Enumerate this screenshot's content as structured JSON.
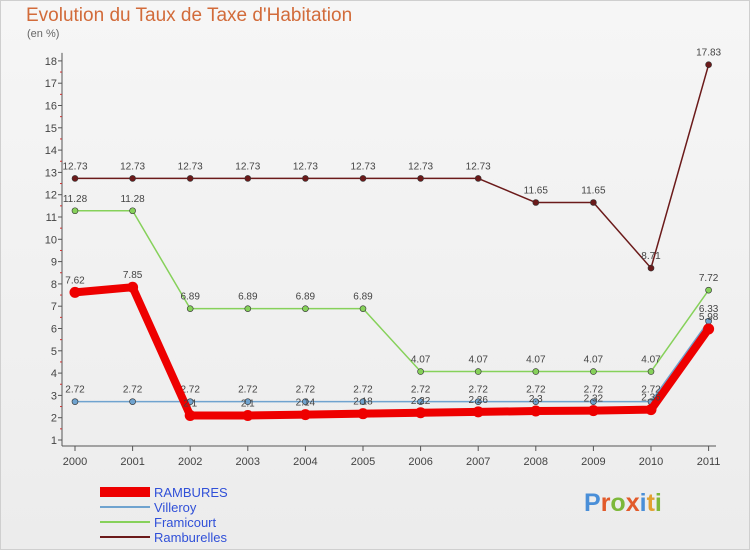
{
  "header": {
    "title": "Evolution du Taux de Taxe d'Habitation",
    "unit": "(en %)"
  },
  "logo": {
    "text": "Proxiti",
    "colors": [
      "#4a8fd8",
      "#e25a2a",
      "#7db83a",
      "#e25a2a",
      "#4a8fd8",
      "#e2a030",
      "#7db83a"
    ]
  },
  "chart_data": {
    "type": "line",
    "title": "Evolution du Taux de Taxe d'Habitation",
    "ylabel": "(en %)",
    "xlabel": "",
    "ylim": [
      1,
      18
    ],
    "yticks": [
      1,
      2,
      3,
      4,
      5,
      6,
      7,
      8,
      9,
      10,
      11,
      12,
      13,
      14,
      15,
      16,
      17,
      18
    ],
    "categories": [
      "2000",
      "2001",
      "2002",
      "2003",
      "2004",
      "2005",
      "2006",
      "2007",
      "2008",
      "2009",
      "2010",
      "2011"
    ],
    "series": [
      {
        "name": "Ramburelles",
        "color": "#6b1a1a",
        "values": [
          12.73,
          12.73,
          12.73,
          12.73,
          12.73,
          12.73,
          12.73,
          12.73,
          11.65,
          11.65,
          8.71,
          17.83
        ],
        "labels": [
          "12.73",
          "12.73",
          "12.73",
          "12.73",
          "12.73",
          "12.73",
          "12.73",
          "12.73",
          "11.65",
          "11.65",
          "8.71",
          "17.83"
        ]
      },
      {
        "name": "Framicourt",
        "color": "#86d15a",
        "values": [
          11.28,
          11.28,
          6.89,
          6.89,
          6.89,
          6.89,
          4.07,
          4.07,
          4.07,
          4.07,
          4.07,
          7.72
        ],
        "labels": [
          "11.28",
          "11.28",
          "6.89",
          "6.89",
          "6.89",
          "6.89",
          "4.07",
          "4.07",
          "4.07",
          "4.07",
          "4.07",
          "7.72"
        ]
      },
      {
        "name": "Villeroy",
        "color": "#6fa3cf",
        "values": [
          2.72,
          2.72,
          2.72,
          2.72,
          2.72,
          2.72,
          2.72,
          2.72,
          2.72,
          2.72,
          2.72,
          6.33
        ],
        "labels": [
          "2.72",
          "2.72",
          "2.72",
          "2.72",
          "2.72",
          "2.72",
          "2.72",
          "2.72",
          "2.72",
          "2.72",
          "2.72",
          "6.33"
        ]
      },
      {
        "name": "RAMBURES",
        "color": "#ee0000",
        "values": [
          7.62,
          7.85,
          2.1,
          2.1,
          2.14,
          2.18,
          2.22,
          2.26,
          2.3,
          2.32,
          2.36,
          5.98
        ],
        "labels": [
          "7.62",
          "7.85",
          "2.1",
          "2.1",
          "2.14",
          "2.18",
          "2.22",
          "2.26",
          "2.3",
          "2.32",
          "2.36",
          "5.98"
        ]
      }
    ],
    "legend": [
      {
        "name": "RAMBURES",
        "color": "#ee0000",
        "thick": true
      },
      {
        "name": "Villeroy",
        "color": "#6fa3cf",
        "thick": false
      },
      {
        "name": "Framicourt",
        "color": "#86d15a",
        "thick": false
      },
      {
        "name": "Ramburelles",
        "color": "#6b1a1a",
        "thick": false
      }
    ],
    "legend_position": "bottom-left",
    "grid": false
  }
}
